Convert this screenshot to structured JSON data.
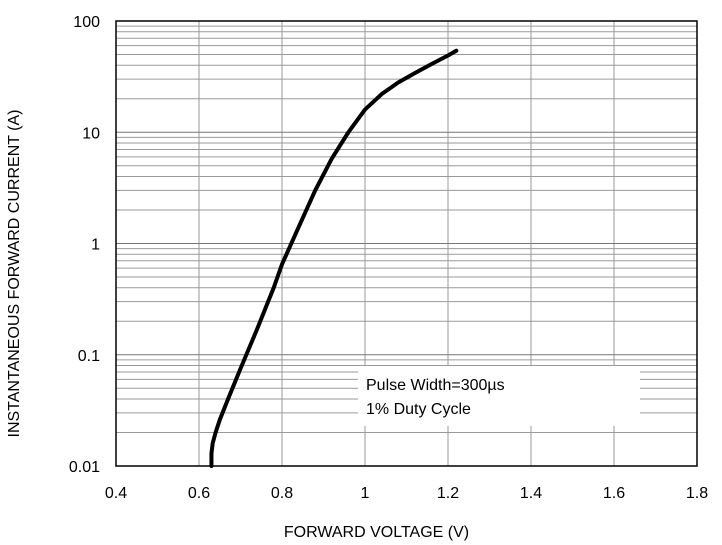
{
  "chart_data": {
    "type": "line",
    "title": "",
    "xlabel": "FORWARD VOLTAGE (V)",
    "ylabel": "INSTANTANEOUS FORWARD CURRENT (A)",
    "xlim": [
      0.4,
      1.8
    ],
    "ylim": [
      0.01,
      100
    ],
    "yscale": "log",
    "grid": true,
    "x_ticks": [
      "0.4",
      "0.6",
      "0.8",
      "1",
      "1.2",
      "1.4",
      "1.6",
      "1.8"
    ],
    "y_ticks": [
      "0.01",
      "0.1",
      "1",
      "10",
      "100"
    ],
    "annotation": [
      "Pulse Width=300µs",
      "1% Duty Cycle"
    ],
    "series": [
      {
        "color": "#000000",
        "x": [
          0.63,
          0.63,
          0.633,
          0.64,
          0.65,
          0.67,
          0.7,
          0.74,
          0.78,
          0.8,
          0.84,
          0.88,
          0.92,
          0.96,
          1.0,
          1.04,
          1.08,
          1.12,
          1.16,
          1.2,
          1.22
        ],
        "y": [
          0.01,
          0.013,
          0.016,
          0.02,
          0.026,
          0.04,
          0.075,
          0.17,
          0.4,
          0.65,
          1.4,
          3.0,
          5.8,
          10.0,
          16.0,
          22.0,
          28.0,
          34.0,
          41.0,
          49.0,
          54.0
        ]
      }
    ]
  }
}
